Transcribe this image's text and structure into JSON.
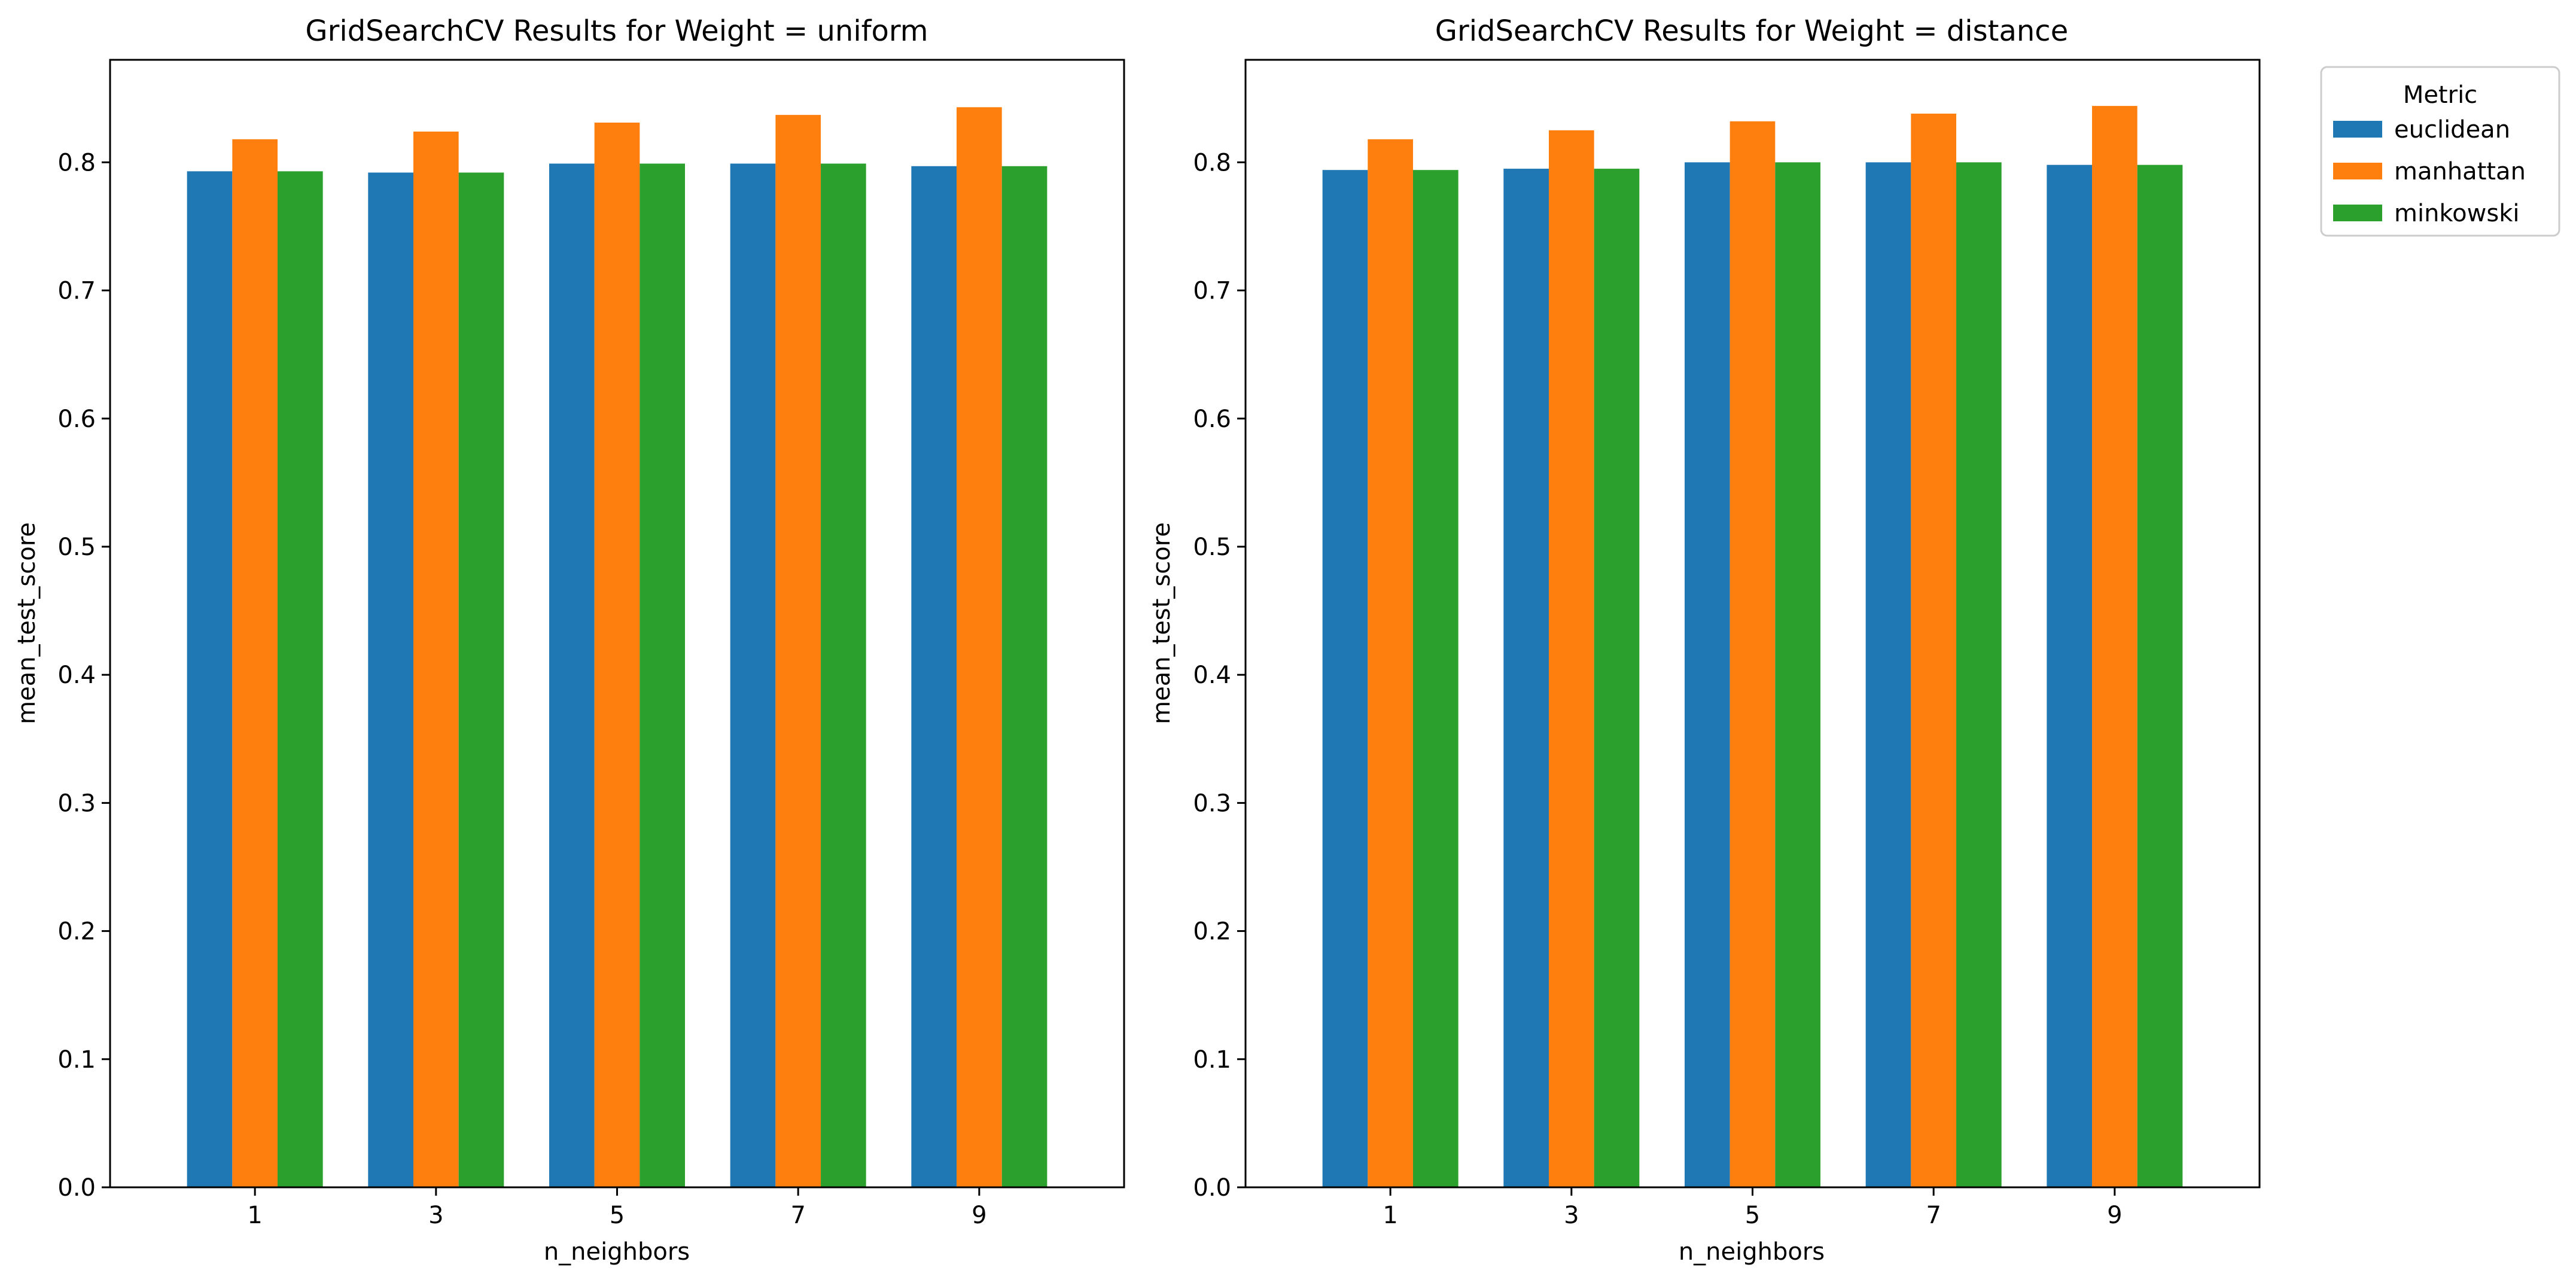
{
  "chart_data": [
    {
      "type": "bar",
      "title": "GridSearchCV Results for Weight = uniform",
      "xlabel": "n_neighbors",
      "ylabel": "mean_test_score",
      "categories": [
        "1",
        "3",
        "5",
        "7",
        "9"
      ],
      "ylim": [
        0,
        0.88
      ],
      "yticks": [
        "0.0",
        "0.1",
        "0.2",
        "0.3",
        "0.4",
        "0.5",
        "0.6",
        "0.7",
        "0.8"
      ],
      "grid": false,
      "series": [
        {
          "name": "euclidean",
          "color": "#1f77b4",
          "values": [
            0.793,
            0.792,
            0.799,
            0.799,
            0.797
          ]
        },
        {
          "name": "manhattan",
          "color": "#ff7f0e",
          "values": [
            0.818,
            0.824,
            0.831,
            0.837,
            0.843
          ]
        },
        {
          "name": "minkowski",
          "color": "#2ca02c",
          "values": [
            0.793,
            0.792,
            0.799,
            0.799,
            0.797
          ]
        }
      ]
    },
    {
      "type": "bar",
      "title": "GridSearchCV Results for Weight = distance",
      "xlabel": "n_neighbors",
      "ylabel": "mean_test_score",
      "categories": [
        "1",
        "3",
        "5",
        "7",
        "9"
      ],
      "ylim": [
        0,
        0.88
      ],
      "yticks": [
        "0.0",
        "0.1",
        "0.2",
        "0.3",
        "0.4",
        "0.5",
        "0.6",
        "0.7",
        "0.8"
      ],
      "grid": false,
      "series": [
        {
          "name": "euclidean",
          "color": "#1f77b4",
          "values": [
            0.794,
            0.795,
            0.8,
            0.8,
            0.798
          ]
        },
        {
          "name": "manhattan",
          "color": "#ff7f0e",
          "values": [
            0.818,
            0.825,
            0.832,
            0.838,
            0.844
          ]
        },
        {
          "name": "minkowski",
          "color": "#2ca02c",
          "values": [
            0.794,
            0.795,
            0.8,
            0.8,
            0.798
          ]
        }
      ]
    }
  ],
  "legend": {
    "title": "Metric",
    "placement": "outside-right-top",
    "entries": [
      {
        "name": "euclidean",
        "color": "#1f77b4"
      },
      {
        "name": "manhattan",
        "color": "#ff7f0e"
      },
      {
        "name": "minkowski",
        "color": "#2ca02c"
      }
    ]
  }
}
